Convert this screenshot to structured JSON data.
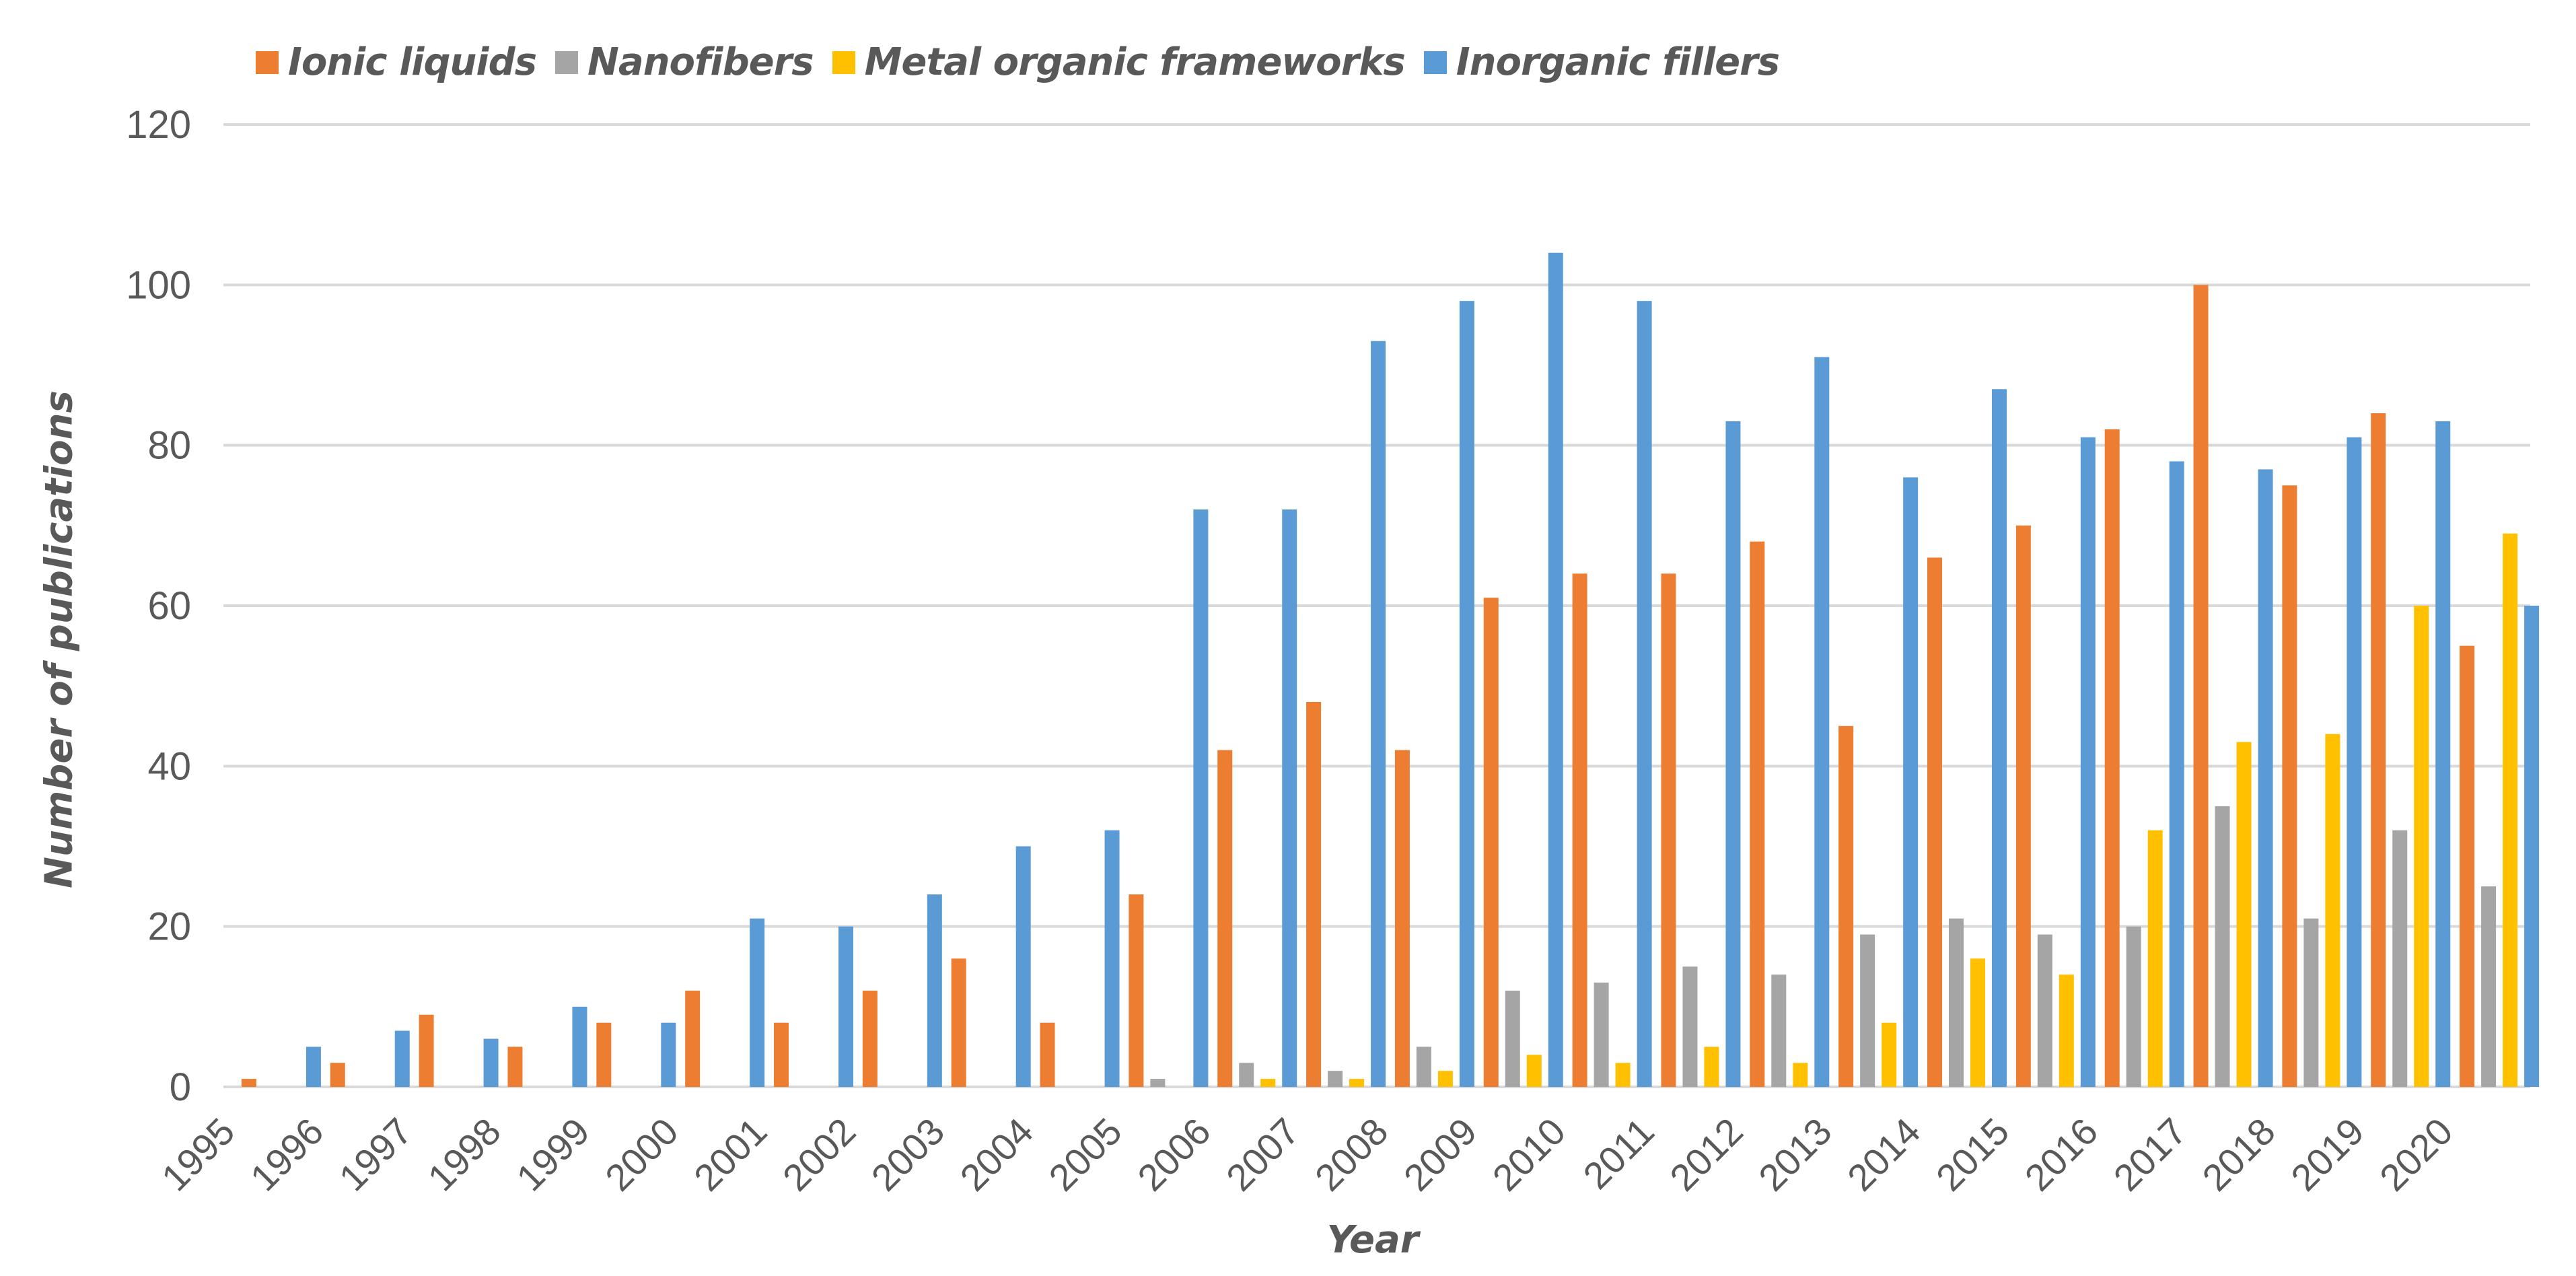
{
  "chart_data": {
    "type": "bar",
    "title": "",
    "xlabel": "Year",
    "ylabel": "Number of publications",
    "ylim": [
      0,
      120
    ],
    "yticks": [
      0,
      20,
      40,
      60,
      80,
      100,
      120
    ],
    "grid": true,
    "legend_position": "top-left",
    "categories": [
      "1995",
      "1996",
      "1997",
      "1998",
      "1999",
      "2000",
      "2001",
      "2002",
      "2003",
      "2004",
      "2005",
      "2006",
      "2007",
      "2008",
      "2009",
      "2010",
      "2011",
      "2012",
      "2013",
      "2014",
      "2015",
      "2016",
      "2017",
      "2018",
      "2019",
      "2020"
    ],
    "series": [
      {
        "name": "Ionic liquids",
        "color": "#ED7D31",
        "values": [
          1,
          3,
          9,
          5,
          8,
          12,
          8,
          12,
          16,
          8,
          24,
          42,
          48,
          42,
          61,
          64,
          64,
          68,
          45,
          66,
          70,
          82,
          100,
          75,
          84,
          55
        ]
      },
      {
        "name": "Nanofibers",
        "color": "#A5A5A5",
        "values": [
          0,
          0,
          0,
          0,
          0,
          0,
          0,
          0,
          0,
          0,
          1,
          3,
          2,
          5,
          12,
          13,
          15,
          14,
          19,
          21,
          19,
          20,
          35,
          21,
          32,
          25
        ]
      },
      {
        "name": "Metal organic frameworks",
        "color": "#FFC000",
        "values": [
          0,
          0,
          0,
          0,
          0,
          0,
          0,
          0,
          0,
          0,
          0,
          1,
          1,
          2,
          4,
          3,
          5,
          3,
          8,
          16,
          14,
          32,
          43,
          44,
          60,
          69
        ]
      },
      {
        "name": "Inorganic fillers",
        "color": "#5B9BD5",
        "values": [
          5,
          7,
          6,
          10,
          8,
          21,
          20,
          24,
          30,
          32,
          72,
          72,
          93,
          98,
          104,
          98,
          83,
          91,
          76,
          87,
          81,
          78,
          77,
          81,
          83,
          60
        ]
      }
    ]
  },
  "legend": {
    "items": [
      {
        "label": "Ionic liquids",
        "color": "#ED7D31"
      },
      {
        "label": "Nanofibers",
        "color": "#A5A5A5"
      },
      {
        "label": "Metal organic frameworks",
        "color": "#FFC000"
      },
      {
        "label": "Inorganic fillers",
        "color": "#5B9BD5"
      }
    ]
  },
  "axes": {
    "x_title": "Year",
    "y_title": "Number of publications"
  }
}
